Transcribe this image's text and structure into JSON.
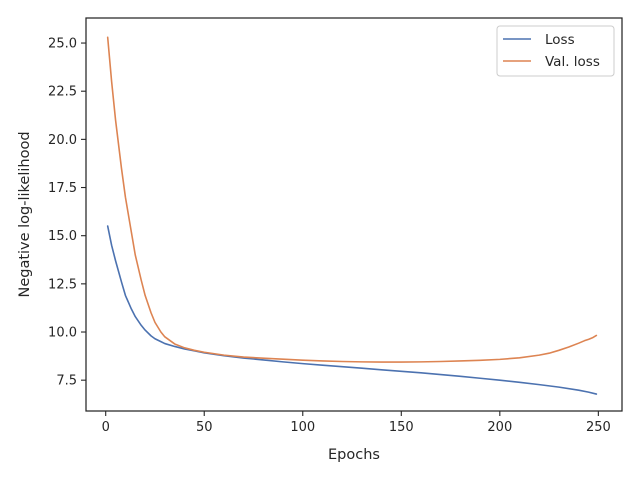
{
  "chart_data": {
    "type": "line",
    "title": "",
    "xlabel": "Epochs",
    "ylabel": "Negative log-likelihood",
    "xlim": [
      -10,
      262
    ],
    "ylim": [
      5.9,
      26.3
    ],
    "xticks": [
      0,
      50,
      100,
      150,
      200,
      250
    ],
    "xtick_labels": [
      "0",
      "50",
      "100",
      "150",
      "200",
      "250"
    ],
    "yticks": [
      7.5,
      10.0,
      12.5,
      15.0,
      17.5,
      20.0,
      22.5,
      25.0
    ],
    "ytick_labels": [
      "7.5",
      "10.0",
      "12.5",
      "15.0",
      "17.5",
      "20.0",
      "22.5",
      "25.0"
    ],
    "grid": false,
    "legend_position": "top-right",
    "series": [
      {
        "name": "Loss",
        "color": "#4c72b0",
        "x": [
          1,
          3,
          5,
          8,
          10,
          13,
          15,
          18,
          20,
          23,
          25,
          28,
          30,
          35,
          40,
          45,
          50,
          60,
          70,
          80,
          90,
          100,
          110,
          120,
          130,
          140,
          150,
          160,
          170,
          180,
          190,
          200,
          210,
          220,
          230,
          240,
          245,
          249
        ],
        "y": [
          15.5,
          14.5,
          13.7,
          12.6,
          11.9,
          11.2,
          10.8,
          10.35,
          10.1,
          9.8,
          9.65,
          9.5,
          9.4,
          9.25,
          9.12,
          9.02,
          8.92,
          8.77,
          8.65,
          8.55,
          8.45,
          8.36,
          8.28,
          8.2,
          8.12,
          8.04,
          7.96,
          7.88,
          7.79,
          7.7,
          7.6,
          7.5,
          7.39,
          7.27,
          7.14,
          6.98,
          6.88,
          6.78
        ]
      },
      {
        "name": "Val. loss",
        "color": "#dd8452",
        "x": [
          1,
          3,
          5,
          8,
          10,
          13,
          15,
          18,
          20,
          23,
          25,
          28,
          30,
          35,
          40,
          45,
          50,
          60,
          70,
          80,
          90,
          100,
          110,
          120,
          130,
          140,
          150,
          160,
          170,
          180,
          190,
          200,
          210,
          220,
          225,
          230,
          235,
          240,
          243,
          245,
          247,
          249
        ],
        "y": [
          25.3,
          23.0,
          21.0,
          18.5,
          17.0,
          15.2,
          14.0,
          12.7,
          11.9,
          11.0,
          10.5,
          10.0,
          9.75,
          9.38,
          9.18,
          9.05,
          8.95,
          8.8,
          8.7,
          8.64,
          8.59,
          8.54,
          8.5,
          8.47,
          8.45,
          8.44,
          8.44,
          8.45,
          8.47,
          8.5,
          8.53,
          8.58,
          8.66,
          8.8,
          8.9,
          9.05,
          9.22,
          9.42,
          9.55,
          9.62,
          9.7,
          9.82
        ]
      }
    ]
  }
}
